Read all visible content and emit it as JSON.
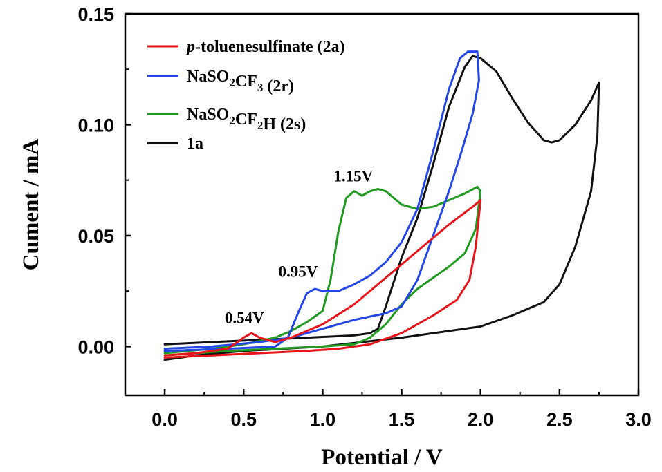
{
  "chart_data": {
    "type": "line",
    "xlabel": "Potential / V",
    "ylabel": "Cument / mA",
    "xlim": [
      -0.25,
      3.0
    ],
    "ylim": [
      -0.022,
      0.15
    ],
    "xticks": [
      "0.0",
      "0.5",
      "1.0",
      "1.5",
      "2.0",
      "2.5",
      "3.0"
    ],
    "xtick_values": [
      0.0,
      0.5,
      1.0,
      1.5,
      2.0,
      2.5,
      3.0
    ],
    "yticks": [
      "0.00",
      "0.05",
      "0.10",
      "0.15"
    ],
    "ytick_values": [
      0.0,
      0.05,
      0.1,
      0.15
    ],
    "legend_position": "top-left",
    "series": [
      {
        "label_parts": [
          {
            "t": "p",
            "style": "italic"
          },
          {
            "t": "-toluenesulfinate (2a)"
          }
        ],
        "color": "#e8141a",
        "points": [
          [
            0.0,
            -0.004
          ],
          [
            0.2,
            -0.003
          ],
          [
            0.4,
            -0.001
          ],
          [
            0.5,
            0.004
          ],
          [
            0.55,
            0.006
          ],
          [
            0.6,
            0.004
          ],
          [
            0.7,
            0.002
          ],
          [
            0.8,
            0.004
          ],
          [
            0.9,
            0.007
          ],
          [
            1.0,
            0.01
          ],
          [
            1.2,
            0.019
          ],
          [
            1.4,
            0.031
          ],
          [
            1.6,
            0.043
          ],
          [
            1.8,
            0.055
          ],
          [
            1.95,
            0.063
          ],
          [
            2.0,
            0.066
          ],
          [
            1.97,
            0.045
          ],
          [
            1.93,
            0.03
          ],
          [
            1.85,
            0.021
          ],
          [
            1.7,
            0.014
          ],
          [
            1.5,
            0.006
          ],
          [
            1.3,
            0.001
          ],
          [
            1.1,
            -0.001
          ],
          [
            0.9,
            -0.002
          ],
          [
            0.6,
            -0.003
          ],
          [
            0.3,
            -0.004
          ],
          [
            0.0,
            -0.005
          ]
        ]
      },
      {
        "label_parts": [
          {
            "t": "NaSO"
          },
          {
            "t": "2",
            "style": "sub"
          },
          {
            "t": "CF"
          },
          {
            "t": "3",
            "style": "sub"
          },
          {
            "t": " (2r)"
          }
        ],
        "color": "#2346e8",
        "points": [
          [
            0.0,
            -0.002
          ],
          [
            0.4,
            -0.001
          ],
          [
            0.7,
            0.0
          ],
          [
            0.78,
            0.004
          ],
          [
            0.85,
            0.016
          ],
          [
            0.9,
            0.024
          ],
          [
            0.95,
            0.026
          ],
          [
            1.0,
            0.025
          ],
          [
            1.1,
            0.025
          ],
          [
            1.2,
            0.028
          ],
          [
            1.3,
            0.032
          ],
          [
            1.4,
            0.038
          ],
          [
            1.5,
            0.047
          ],
          [
            1.6,
            0.062
          ],
          [
            1.7,
            0.088
          ],
          [
            1.8,
            0.116
          ],
          [
            1.87,
            0.13
          ],
          [
            1.92,
            0.133
          ],
          [
            1.98,
            0.133
          ],
          [
            1.99,
            0.12
          ],
          [
            1.95,
            0.105
          ],
          [
            1.88,
            0.088
          ],
          [
            1.8,
            0.07
          ],
          [
            1.7,
            0.05
          ],
          [
            1.6,
            0.03
          ],
          [
            1.5,
            0.018
          ],
          [
            1.4,
            0.015
          ],
          [
            1.2,
            0.012
          ],
          [
            1.0,
            0.008
          ],
          [
            0.8,
            0.004
          ],
          [
            0.6,
            0.002
          ],
          [
            0.3,
            0.0
          ],
          [
            0.0,
            -0.001
          ]
        ]
      },
      {
        "label_parts": [
          {
            "t": "NaSO"
          },
          {
            "t": "2",
            "style": "sub"
          },
          {
            "t": "CF"
          },
          {
            "t": "2",
            "style": "sub"
          },
          {
            "t": "H (2s)"
          }
        ],
        "color": "#1f9a1f",
        "points": [
          [
            0.0,
            -0.003
          ],
          [
            0.3,
            -0.001
          ],
          [
            0.5,
            0.001
          ],
          [
            0.7,
            0.004
          ],
          [
            0.8,
            0.007
          ],
          [
            0.9,
            0.011
          ],
          [
            1.0,
            0.016
          ],
          [
            1.05,
            0.03
          ],
          [
            1.1,
            0.052
          ],
          [
            1.15,
            0.067
          ],
          [
            1.2,
            0.07
          ],
          [
            1.25,
            0.068
          ],
          [
            1.3,
            0.07
          ],
          [
            1.35,
            0.071
          ],
          [
            1.4,
            0.07
          ],
          [
            1.5,
            0.064
          ],
          [
            1.6,
            0.062
          ],
          [
            1.7,
            0.063
          ],
          [
            1.8,
            0.066
          ],
          [
            1.9,
            0.069
          ],
          [
            1.98,
            0.072
          ],
          [
            2.0,
            0.07
          ],
          [
            1.97,
            0.053
          ],
          [
            1.9,
            0.042
          ],
          [
            1.8,
            0.036
          ],
          [
            1.7,
            0.031
          ],
          [
            1.6,
            0.026
          ],
          [
            1.5,
            0.019
          ],
          [
            1.4,
            0.01
          ],
          [
            1.3,
            0.004
          ],
          [
            1.2,
            0.001
          ],
          [
            1.0,
            0.0
          ],
          [
            0.7,
            -0.001
          ],
          [
            0.4,
            -0.002
          ],
          [
            0.0,
            -0.004
          ]
        ]
      },
      {
        "label_parts": [
          {
            "t": "1a"
          }
        ],
        "color": "#111111",
        "points": [
          [
            0.0,
            0.001
          ],
          [
            0.3,
            0.002
          ],
          [
            0.6,
            0.003
          ],
          [
            0.9,
            0.004
          ],
          [
            1.2,
            0.005
          ],
          [
            1.3,
            0.006
          ],
          [
            1.35,
            0.008
          ],
          [
            1.4,
            0.018
          ],
          [
            1.5,
            0.04
          ],
          [
            1.6,
            0.058
          ],
          [
            1.7,
            0.082
          ],
          [
            1.8,
            0.108
          ],
          [
            1.9,
            0.126
          ],
          [
            1.95,
            0.131
          ],
          [
            2.0,
            0.13
          ],
          [
            2.1,
            0.124
          ],
          [
            2.2,
            0.112
          ],
          [
            2.3,
            0.101
          ],
          [
            2.4,
            0.093
          ],
          [
            2.45,
            0.092
          ],
          [
            2.5,
            0.093
          ],
          [
            2.6,
            0.1
          ],
          [
            2.7,
            0.111
          ],
          [
            2.75,
            0.119
          ],
          [
            2.74,
            0.095
          ],
          [
            2.7,
            0.07
          ],
          [
            2.6,
            0.045
          ],
          [
            2.5,
            0.028
          ],
          [
            2.4,
            0.02
          ],
          [
            2.2,
            0.014
          ],
          [
            2.0,
            0.009
          ],
          [
            1.5,
            0.004
          ],
          [
            1.0,
            0.0
          ],
          [
            0.5,
            -0.002
          ],
          [
            0.2,
            -0.004
          ],
          [
            0.0,
            -0.006
          ]
        ]
      }
    ],
    "annotations": [
      {
        "text": "1.15V",
        "x": 1.07,
        "y": 0.0745
      },
      {
        "text": "0.95V",
        "x": 0.72,
        "y": 0.0315
      },
      {
        "text": "0.54V",
        "x": 0.38,
        "y": 0.0105
      }
    ]
  }
}
